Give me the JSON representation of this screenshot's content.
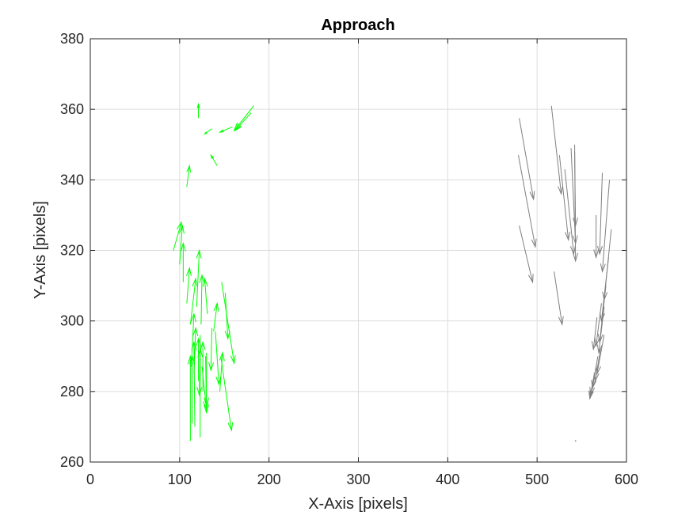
{
  "chart_data": {
    "type": "quiver",
    "title": "Approach",
    "xlabel": "X-Axis [pixels]",
    "ylabel": "Y-Axis [pixels]",
    "xlim": [
      0,
      600
    ],
    "ylim": [
      260,
      380
    ],
    "xticks": [
      0,
      100,
      200,
      300,
      400,
      500,
      600
    ],
    "yticks": [
      260,
      280,
      300,
      320,
      340,
      360,
      380
    ],
    "xtick_labels": [
      "0",
      "100",
      "200",
      "300",
      "400",
      "500",
      "600"
    ],
    "ytick_labels": [
      "260",
      "280",
      "300",
      "320",
      "340",
      "360",
      "380"
    ],
    "grid": true,
    "series": [
      {
        "color": "#00ff00",
        "vectors": [
          {
            "x": 121,
            "y": 357.5,
            "u": 0,
            "v": 4
          },
          {
            "x": 183,
            "y": 361,
            "u": -22,
            "v": -7
          },
          {
            "x": 180,
            "y": 359,
            "u": -18,
            "v": -5
          },
          {
            "x": 159,
            "y": 355,
            "u": -14,
            "v": -1.5
          },
          {
            "x": 136,
            "y": 354.5,
            "u": -8,
            "v": -1.5
          },
          {
            "x": 142,
            "y": 344,
            "u": -7,
            "v": 3
          },
          {
            "x": 108,
            "y": 338,
            "u": 3,
            "v": 6
          },
          {
            "x": 93,
            "y": 320,
            "u": 9,
            "v": 8
          },
          {
            "x": 100,
            "y": 316,
            "u": 3,
            "v": 11
          },
          {
            "x": 104,
            "y": 311,
            "u": 0,
            "v": 11
          },
          {
            "x": 108,
            "y": 305,
            "u": 3,
            "v": 10
          },
          {
            "x": 112,
            "y": 299,
            "u": 6,
            "v": 13
          },
          {
            "x": 119,
            "y": 304,
            "u": 3,
            "v": 16
          },
          {
            "x": 124,
            "y": 299,
            "u": 1,
            "v": 14
          },
          {
            "x": 131,
            "y": 302,
            "u": -3,
            "v": 10
          },
          {
            "x": 138,
            "y": 297,
            "u": 4,
            "v": 8
          },
          {
            "x": 147,
            "y": 311,
            "u": 14,
            "v": -23
          },
          {
            "x": 151,
            "y": 308,
            "u": 3,
            "v": -13
          },
          {
            "x": 136,
            "y": 298,
            "u": -1,
            "v": -12
          },
          {
            "x": 146,
            "y": 290,
            "u": 12,
            "v": -21
          },
          {
            "x": 123,
            "y": 296,
            "u": -1,
            "v": -17
          },
          {
            "x": 130,
            "y": 291,
            "u": 0,
            "v": -15
          },
          {
            "x": 116,
            "y": 285,
            "u": 2,
            "v": 13
          },
          {
            "x": 113,
            "y": 287,
            "u": 3,
            "v": 15
          },
          {
            "x": 117,
            "y": 270,
            "u": -1,
            "v": 24
          },
          {
            "x": 114,
            "y": 271,
            "u": 0,
            "v": 19
          },
          {
            "x": 112,
            "y": 266,
            "u": 0,
            "v": 24
          },
          {
            "x": 121,
            "y": 283,
            "u": 0,
            "v": 12
          },
          {
            "x": 126,
            "y": 280,
            "u": 0,
            "v": 14
          },
          {
            "x": 123,
            "y": 267,
            "u": 0,
            "v": 25
          },
          {
            "x": 125,
            "y": 287,
            "u": 5,
            "v": -12
          },
          {
            "x": 129,
            "y": 290,
            "u": 1,
            "v": -16
          },
          {
            "x": 140,
            "y": 297,
            "u": 4,
            "v": -15
          },
          {
            "x": 145,
            "y": 280,
            "u": 3,
            "v": 11
          }
        ]
      },
      {
        "color": "#808080",
        "vectors": [
          {
            "x": 480,
            "y": 357.5,
            "u": 16,
            "v": -23
          },
          {
            "x": 479,
            "y": 347,
            "u": 19,
            "v": -26
          },
          {
            "x": 480,
            "y": 327,
            "u": 15,
            "v": -16
          },
          {
            "x": 516,
            "y": 361,
            "u": 11,
            "v": -25
          },
          {
            "x": 525,
            "y": 347,
            "u": 10,
            "v": -24
          },
          {
            "x": 531,
            "y": 343,
            "u": 10,
            "v": -24
          },
          {
            "x": 538,
            "y": 349,
            "u": 5,
            "v": -27
          },
          {
            "x": 542,
            "y": 348,
            "u": 1,
            "v": -21
          },
          {
            "x": 542,
            "y": 350,
            "u": 1,
            "v": -33
          },
          {
            "x": 519,
            "y": 314,
            "u": 9,
            "v": -15
          },
          {
            "x": 573,
            "y": 342,
            "u": -3,
            "v": -23
          },
          {
            "x": 581,
            "y": 340,
            "u": -8,
            "v": -26
          },
          {
            "x": 566,
            "y": 330,
            "u": 0,
            "v": -12
          },
          {
            "x": 583,
            "y": 326,
            "u": -8,
            "v": -20
          },
          {
            "x": 580,
            "y": 318,
            "u": -8,
            "v": -18
          },
          {
            "x": 577,
            "y": 310,
            "u": -7,
            "v": -16
          },
          {
            "x": 575,
            "y": 304,
            "u": -6,
            "v": -13
          },
          {
            "x": 572,
            "y": 305,
            "u": -6,
            "v": -12
          },
          {
            "x": 567,
            "y": 301,
            "u": -4,
            "v": -9
          },
          {
            "x": 575,
            "y": 296,
            "u": -8,
            "v": -11
          },
          {
            "x": 571,
            "y": 292,
            "u": -6,
            "v": -9
          },
          {
            "x": 568,
            "y": 290,
            "u": -6,
            "v": -9
          },
          {
            "x": 566,
            "y": 287,
            "u": -6,
            "v": -8
          },
          {
            "x": 564,
            "y": 285,
            "u": -5,
            "v": -7
          },
          {
            "x": 565,
            "y": 283,
            "u": -6,
            "v": -4
          },
          {
            "x": 563,
            "y": 283,
            "u": -3,
            "v": -4
          },
          {
            "x": 543,
            "y": 266,
            "u": 0,
            "v": 0
          }
        ]
      }
    ]
  }
}
